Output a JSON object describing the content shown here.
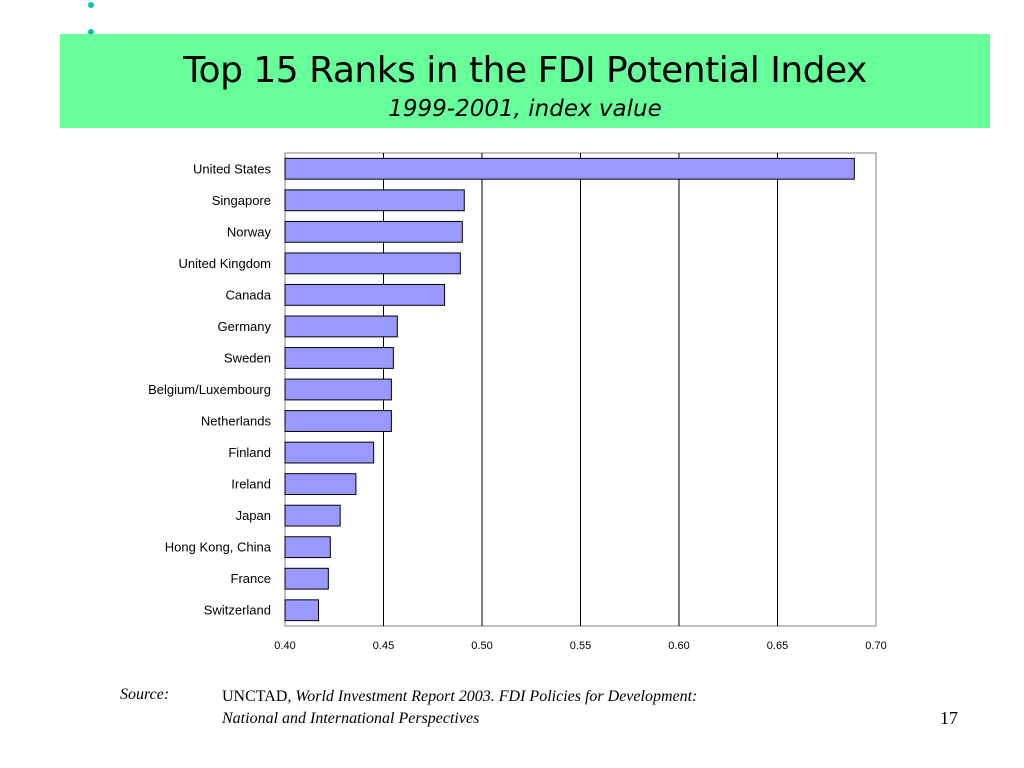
{
  "slide": {
    "title": "Top 15 Ranks in the FDI Potential Index",
    "subtitle": "1999-2001, index value",
    "page_number": "17",
    "source": {
      "label": "Source:",
      "publisher": "UNCTAD",
      "publication": ", World Investment Report 2003.  FDI Policies for Development:",
      "publication_line2": "National and International Perspectives"
    }
  },
  "colors": {
    "title_band": "#66ff99",
    "bar_fill": "#9999ff",
    "bar_stroke": "#000000",
    "grid": "#000000"
  },
  "chart_data": {
    "type": "bar",
    "orientation": "horizontal",
    "title": "",
    "xlabel": "",
    "ylabel": "",
    "categories": [
      "United States",
      "Singapore",
      "Norway",
      "United Kingdom",
      "Canada",
      "Germany",
      "Sweden",
      "Belgium/Luxembourg",
      "Netherlands",
      "Finland",
      "Ireland",
      "Japan",
      "Hong Kong, China",
      "France",
      "Switzerland"
    ],
    "values": [
      0.689,
      0.491,
      0.49,
      0.489,
      0.481,
      0.457,
      0.455,
      0.454,
      0.454,
      0.445,
      0.436,
      0.428,
      0.423,
      0.422,
      0.417
    ],
    "xlim": [
      0.4,
      0.7
    ],
    "ticks": [
      "0.40",
      "0.45",
      "0.50",
      "0.55",
      "0.60",
      "0.65",
      "0.70"
    ],
    "tick_values": [
      0.4,
      0.45,
      0.5,
      0.55,
      0.6,
      0.65,
      0.7
    ],
    "grid": true,
    "legend": "none"
  }
}
